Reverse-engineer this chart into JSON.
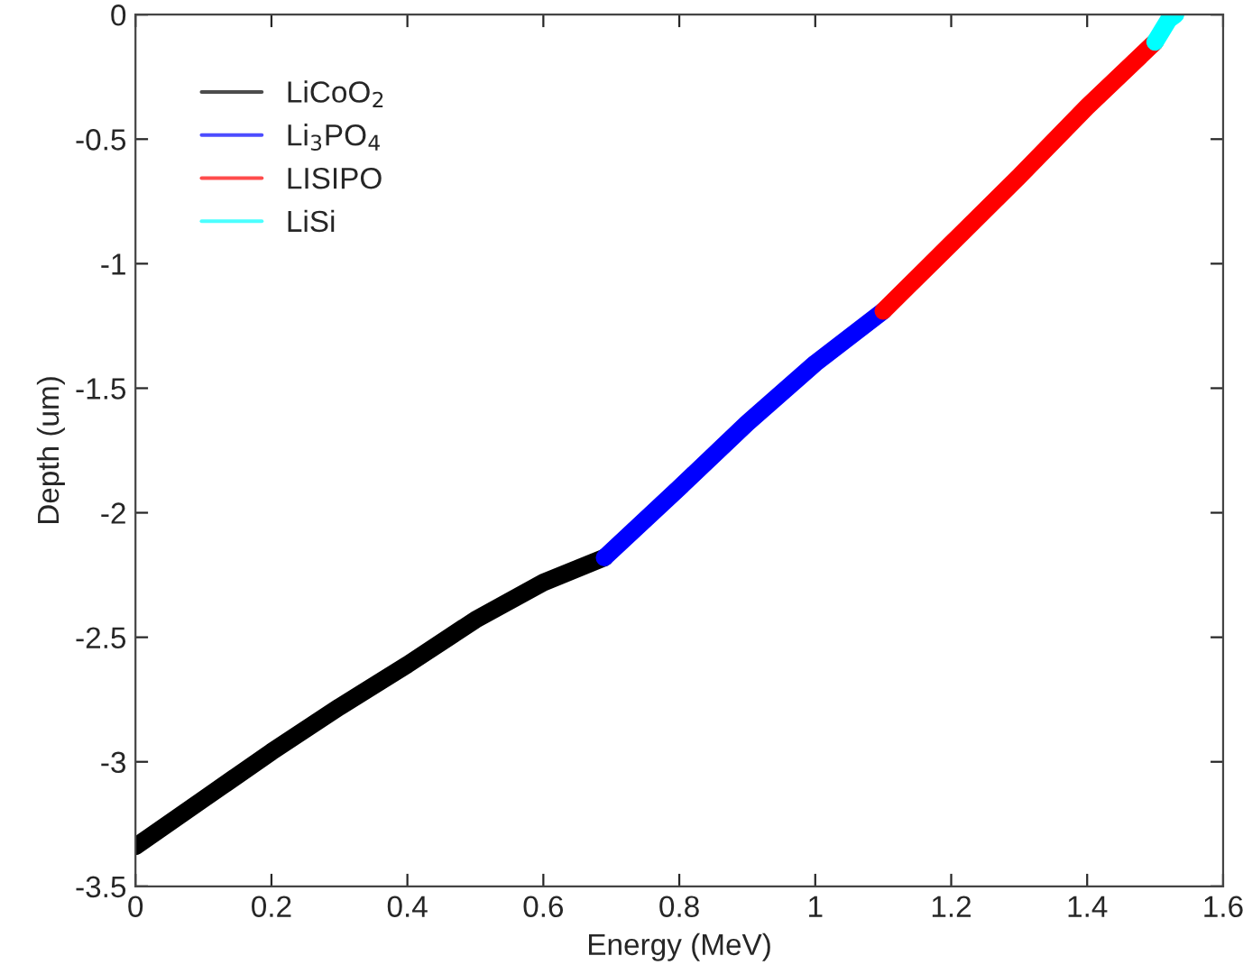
{
  "chart_data": {
    "type": "line",
    "xlabel": "Energy (MeV)",
    "ylabel": "Depth (um)",
    "xlim": [
      0,
      1.6
    ],
    "xticks": [
      0,
      0.2,
      0.4,
      0.6,
      0.8,
      1,
      1.2,
      1.4,
      1.6
    ],
    "ylim": [
      -3.5,
      0
    ],
    "yticks": [
      -3.5,
      -3,
      -2.5,
      -2,
      -1.5,
      -1,
      -0.5,
      0
    ],
    "grid": false,
    "legend": "top left",
    "marker": "none",
    "line_style": "solid",
    "series": [
      {
        "name": "LiCoO$_{2}$",
        "color": "#000000",
        "x": [
          0,
          0.1,
          0.2,
          0.3,
          0.4,
          0.5,
          0.6,
          0.69
        ],
        "values": [
          -3.34,
          -3.15,
          -2.96,
          -2.78,
          -2.61,
          -2.43,
          -2.28,
          -2.18
        ]
      },
      {
        "name": "Li$_{3}$PO$_{4}$",
        "color": "#0000ff",
        "x": [
          0.69,
          0.8,
          0.9,
          1,
          1.1
        ],
        "values": [
          -2.18,
          -1.9,
          -1.64,
          -1.4,
          -1.19
        ]
      },
      {
        "name": "LISIPO",
        "color": "#ff0000",
        "x": [
          1.1,
          1.2,
          1.3,
          1.4,
          1.5
        ],
        "values": [
          -1.19,
          -0.92,
          -0.65,
          -0.37,
          -0.11
        ]
      },
      {
        "name": "LiSi",
        "color": "#00ffff",
        "x": [
          1.5,
          1.52,
          1.53
        ],
        "values": [
          -0.11,
          -0.02,
          0
        ]
      }
    ]
  }
}
